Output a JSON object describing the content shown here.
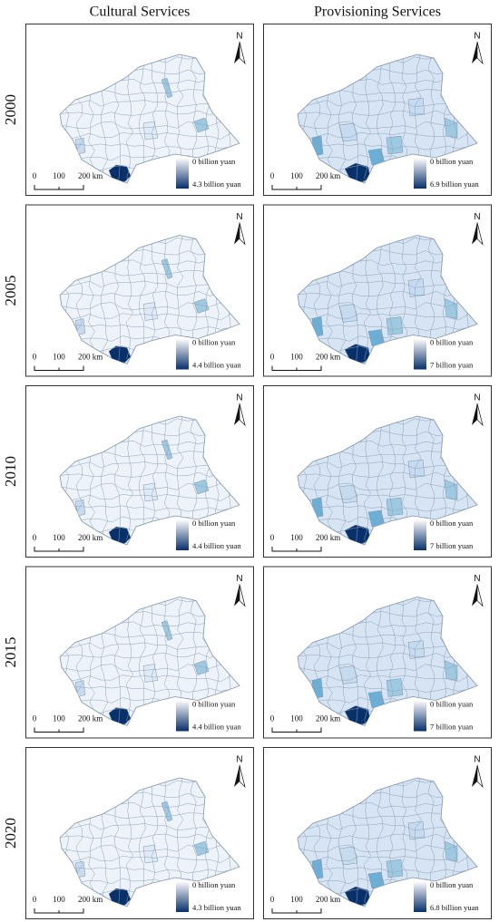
{
  "headers": {
    "columns": [
      "Cultural Services",
      "Provisioning Services"
    ]
  },
  "rows": [
    {
      "year": "2000",
      "panels": [
        {
          "legend_min": "0 billion yuan",
          "legend_max": "4.3 billion yuan"
        },
        {
          "legend_min": "0 billion yuan",
          "legend_max": "6.9 billion yuan"
        }
      ]
    },
    {
      "year": "2005",
      "panels": [
        {
          "legend_min": "0 billion yuan",
          "legend_max": "4.4 billion yuan"
        },
        {
          "legend_min": "0 billion yuan",
          "legend_max": "7 billion yuan"
        }
      ]
    },
    {
      "year": "2010",
      "panels": [
        {
          "legend_min": "0 billion yuan",
          "legend_max": "4.4 billion yuan"
        },
        {
          "legend_min": "0 billion yuan",
          "legend_max": "7 billion yuan"
        }
      ]
    },
    {
      "year": "2015",
      "panels": [
        {
          "legend_min": "0 billion yuan",
          "legend_max": "4.4 billion yuan"
        },
        {
          "legend_min": "0 billion yuan",
          "legend_max": "7 billion yuan"
        }
      ]
    },
    {
      "year": "2020",
      "panels": [
        {
          "legend_min": "0 billion yuan",
          "legend_max": "4.3 billion yuan"
        },
        {
          "legend_min": "0 billion yuan",
          "legend_max": "6.8 billion yuan"
        }
      ]
    }
  ],
  "scale_bar": {
    "labels": [
      "0",
      "100",
      "200 km"
    ]
  },
  "north_arrow": "N"
}
